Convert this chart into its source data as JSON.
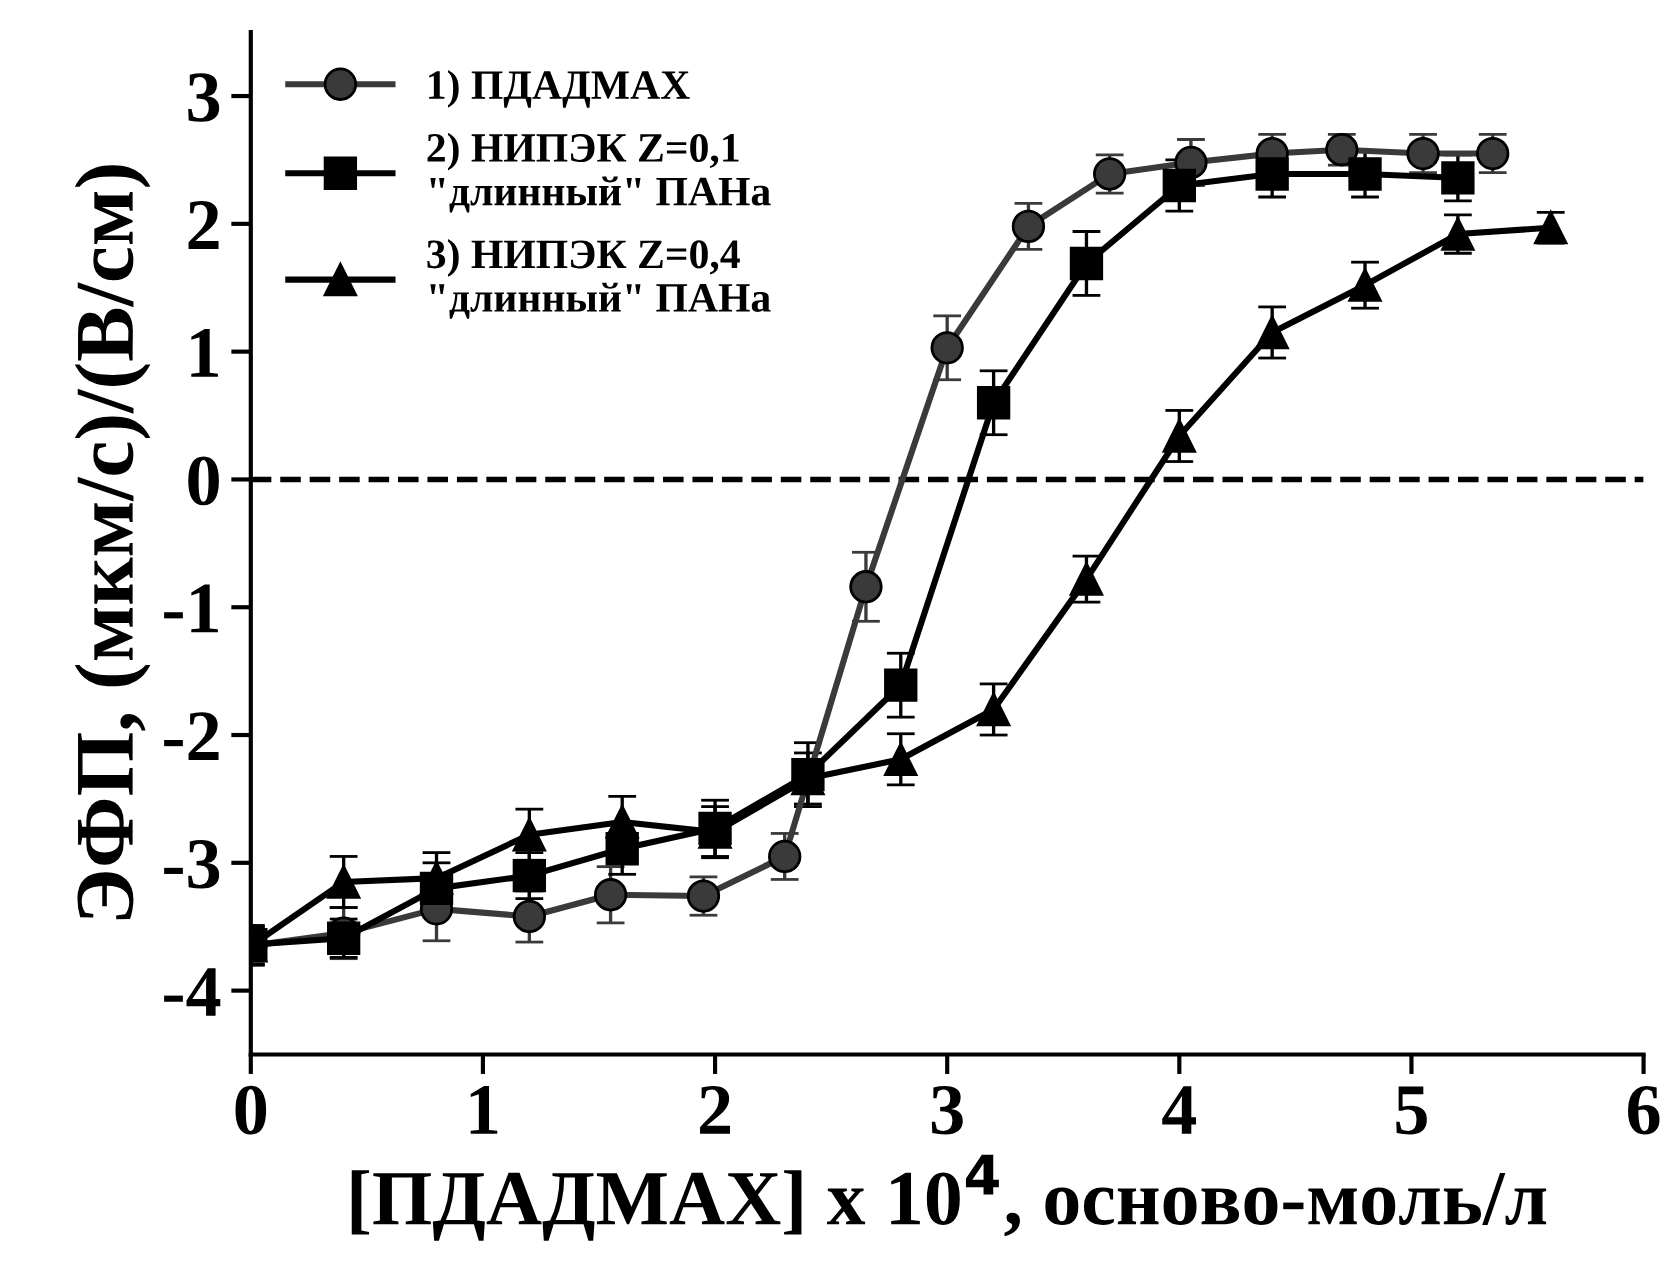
{
  "chart_data": {
    "type": "line",
    "xlabel": "[ПДАДМАХ] x 10$^{4}$, осново-моль/л",
    "ylabel": "ЭФП, (мкм/с)/(В/см)",
    "xlim": [
      0,
      6
    ],
    "xticks": [
      0,
      1,
      2,
      3,
      4,
      5,
      6
    ],
    "ylim": [
      -4.5,
      3.5
    ],
    "yticks": [
      -4,
      -3,
      -2,
      -1,
      0,
      1,
      2,
      3
    ],
    "legend": "top left",
    "line_style": "solid",
    "ref_lines": [
      {
        "axis": "y",
        "value": 0,
        "color": "#000000",
        "line_style": "dashed"
      }
    ],
    "series": [
      {
        "name": "1) ПДАДМАХ",
        "color": "#3a3a3a",
        "marker": "circle",
        "x": [
          0,
          0.4,
          0.8,
          1.2,
          1.55,
          1.95,
          2.3,
          2.65,
          3.0,
          3.35,
          3.7,
          4.05,
          4.4,
          4.7,
          5.05,
          5.35
        ],
        "values": [
          -3.65,
          -3.55,
          -3.36,
          -3.42,
          -3.25,
          -3.26,
          -2.95,
          -0.84,
          1.03,
          1.98,
          2.39,
          2.48,
          2.55,
          2.58,
          2.55,
          2.55
        ],
        "errors": [
          0.15,
          0.2,
          0.25,
          0.2,
          0.22,
          0.15,
          0.18,
          0.27,
          0.25,
          0.18,
          0.15,
          0.18,
          0.15,
          0.12,
          0.15,
          0.15
        ]
      },
      {
        "name": "2) НИПЭК Z=0,1\n\"длинный\" ПАНа",
        "color": "#000000",
        "marker": "square",
        "x": [
          0,
          0.4,
          0.8,
          1.2,
          1.6,
          2.0,
          2.4,
          2.8,
          3.2,
          3.6,
          4.0,
          4.4,
          4.8,
          5.2
        ],
        "values": [
          -3.64,
          -3.59,
          -3.2,
          -3.1,
          -2.89,
          -2.73,
          -2.31,
          -1.61,
          0.6,
          1.69,
          2.3,
          2.39,
          2.39,
          2.36
        ],
        "errors": [
          0.15,
          0.15,
          0.2,
          0.18,
          0.2,
          0.22,
          0.25,
          0.25,
          0.25,
          0.25,
          0.2,
          0.18,
          0.18,
          0.18
        ]
      },
      {
        "name": "3) НИПЭК Z=0,4\n\"длинный\" ПАНа",
        "color": "#000000",
        "marker": "triangle",
        "x": [
          0,
          0.4,
          0.8,
          1.2,
          1.6,
          2.0,
          2.4,
          2.8,
          3.2,
          3.6,
          4.0,
          4.4,
          4.8,
          5.2,
          5.6
        ],
        "values": [
          -3.65,
          -3.15,
          -3.12,
          -2.78,
          -2.68,
          -2.76,
          -2.34,
          -2.19,
          -1.8,
          -0.78,
          0.34,
          1.15,
          1.52,
          1.92,
          1.97
        ],
        "errors": [
          0.15,
          0.2,
          0.2,
          0.2,
          0.2,
          0.2,
          0.2,
          0.2,
          0.2,
          0.18,
          0.2,
          0.2,
          0.18,
          0.15,
          0.12
        ]
      }
    ]
  }
}
